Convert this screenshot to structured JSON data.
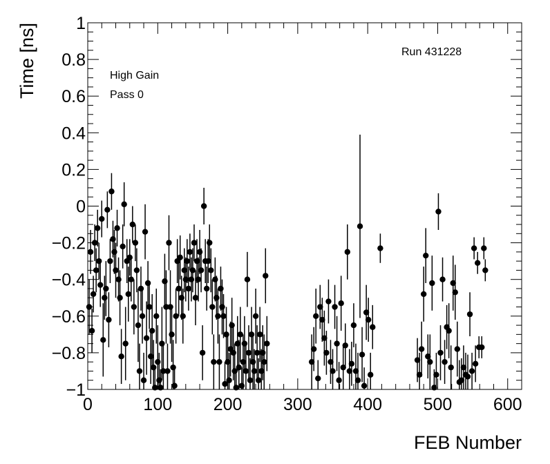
{
  "chart_data": {
    "type": "scatter",
    "xlabel": "FEB Number",
    "ylabel": "Time [ns]",
    "xlim": [
      0,
      620
    ],
    "ylim": [
      -1,
      1
    ],
    "x_ticks": [
      0,
      100,
      200,
      300,
      400,
      500,
      600
    ],
    "y_ticks": [
      -1,
      -0.8,
      -0.6,
      -0.4,
      -0.2,
      0,
      0.2,
      0.4,
      0.6,
      0.8,
      1
    ],
    "x_tick_labels": [
      "0",
      "100",
      "200",
      "300",
      "400",
      "500",
      "600"
    ],
    "y_tick_labels": [
      "−1",
      "−0.8",
      "−0.6",
      "−0.4",
      "−0.2",
      "0",
      "0.2",
      "0.4",
      "0.6",
      "0.8",
      "1"
    ],
    "annotations": [
      "High Gain",
      "Pass 0",
      "Run 431228"
    ],
    "grid": false,
    "marker_color": "#000000",
    "points": [
      [
        2,
        -0.55,
        0.15
      ],
      [
        4,
        -0.25,
        0.12
      ],
      [
        6,
        -0.68,
        0.12
      ],
      [
        8,
        -0.48,
        0.1
      ],
      [
        10,
        -0.2,
        0.1
      ],
      [
        12,
        -0.35,
        0.12
      ],
      [
        14,
        -0.12,
        0.1
      ],
      [
        16,
        -0.3,
        0.1
      ],
      [
        18,
        -0.43,
        0.12
      ],
      [
        20,
        -0.07,
        0.1
      ],
      [
        22,
        -0.73,
        0.2
      ],
      [
        24,
        -0.5,
        0.12
      ],
      [
        26,
        -0.45,
        0.15
      ],
      [
        28,
        -0.02,
        0.1
      ],
      [
        30,
        -0.62,
        0.15
      ],
      [
        32,
        -0.3,
        0.12
      ],
      [
        34,
        0.08,
        0.1
      ],
      [
        36,
        -0.18,
        0.1
      ],
      [
        38,
        -0.25,
        0.12
      ],
      [
        40,
        -0.35,
        0.15
      ],
      [
        42,
        -0.12,
        0.1
      ],
      [
        44,
        -0.4,
        0.12
      ],
      [
        46,
        -0.5,
        0.15
      ],
      [
        48,
        -0.82,
        0.15
      ],
      [
        50,
        -0.22,
        0.12
      ],
      [
        52,
        0.01,
        0.12
      ],
      [
        54,
        -0.75,
        0.2
      ],
      [
        56,
        -0.3,
        0.12
      ],
      [
        58,
        -0.48,
        0.15
      ],
      [
        60,
        -0.28,
        0.1
      ],
      [
        62,
        -0.4,
        0.12
      ],
      [
        64,
        -0.1,
        0.1
      ],
      [
        66,
        -0.55,
        0.15
      ],
      [
        68,
        -0.2,
        0.1
      ],
      [
        70,
        -0.35,
        0.12
      ],
      [
        72,
        -0.65,
        0.2
      ],
      [
        74,
        -0.9,
        0.15
      ],
      [
        76,
        -0.45,
        0.12
      ],
      [
        78,
        -0.6,
        0.15
      ],
      [
        80,
        -0.95,
        0.15
      ],
      [
        82,
        -0.14,
        0.15
      ],
      [
        84,
        -0.72,
        0.2
      ],
      [
        86,
        -0.42,
        0.12
      ],
      [
        88,
        -0.55,
        0.12
      ],
      [
        90,
        -0.82,
        0.15
      ],
      [
        92,
        -0.68,
        0.2
      ],
      [
        94,
        -0.88,
        0.15
      ],
      [
        96,
        -0.99,
        0.1
      ],
      [
        98,
        -0.6,
        0.15
      ],
      [
        100,
        -0.85,
        0.2
      ],
      [
        102,
        -0.95,
        0.15
      ],
      [
        104,
        -0.99,
        0.1
      ],
      [
        106,
        -0.75,
        0.2
      ],
      [
        108,
        -0.9,
        0.15
      ],
      [
        110,
        -0.41,
        0.15
      ],
      [
        112,
        -0.55,
        0.2
      ],
      [
        114,
        -0.9,
        0.15
      ],
      [
        116,
        -0.2,
        0.15
      ],
      [
        118,
        -0.55,
        0.2
      ],
      [
        120,
        -0.7,
        0.15
      ],
      [
        122,
        -0.88,
        0.15
      ],
      [
        124,
        -0.98,
        0.1
      ],
      [
        126,
        -0.6,
        0.15
      ],
      [
        128,
        -0.3,
        0.12
      ],
      [
        130,
        -0.45,
        0.15
      ],
      [
        132,
        -0.28,
        0.12
      ],
      [
        134,
        -0.5,
        0.12
      ],
      [
        136,
        -0.6,
        0.15
      ],
      [
        138,
        -0.35,
        0.12
      ],
      [
        140,
        -0.4,
        0.12
      ],
      [
        142,
        -0.3,
        0.12
      ],
      [
        144,
        -0.45,
        0.12
      ],
      [
        146,
        -0.25,
        0.1
      ],
      [
        148,
        -0.4,
        0.12
      ],
      [
        150,
        -0.35,
        0.12
      ],
      [
        152,
        -0.2,
        0.1
      ],
      [
        154,
        -0.5,
        0.15
      ],
      [
        156,
        -0.3,
        0.12
      ],
      [
        158,
        -0.4,
        0.12
      ],
      [
        160,
        -0.25,
        0.12
      ],
      [
        162,
        -0.35,
        0.12
      ],
      [
        164,
        -0.8,
        0.15
      ],
      [
        166,
        0.0,
        0.1
      ],
      [
        168,
        -0.3,
        0.12
      ],
      [
        170,
        -0.45,
        0.12
      ],
      [
        172,
        -0.3,
        0.12
      ],
      [
        174,
        -0.2,
        0.1
      ],
      [
        176,
        -0.35,
        0.12
      ],
      [
        178,
        -0.55,
        0.15
      ],
      [
        180,
        -0.85,
        0.15
      ],
      [
        182,
        -0.4,
        0.12
      ],
      [
        184,
        -0.5,
        0.12
      ],
      [
        186,
        -0.6,
        0.15
      ],
      [
        188,
        -0.85,
        0.15
      ],
      [
        190,
        -0.45,
        0.12
      ],
      [
        192,
        -0.55,
        0.15
      ],
      [
        194,
        -0.6,
        0.12
      ],
      [
        196,
        -0.97,
        0.12
      ],
      [
        198,
        -0.7,
        0.15
      ],
      [
        200,
        -0.85,
        0.15
      ],
      [
        202,
        -0.95,
        0.15
      ],
      [
        204,
        -0.78,
        0.15
      ],
      [
        206,
        -0.65,
        0.15
      ],
      [
        208,
        -0.8,
        0.15
      ],
      [
        210,
        -0.9,
        0.15
      ],
      [
        212,
        -0.99,
        0.1
      ],
      [
        214,
        -0.75,
        0.15
      ],
      [
        216,
        -0.88,
        0.15
      ],
      [
        218,
        -0.7,
        0.15
      ],
      [
        220,
        -0.98,
        0.1
      ],
      [
        222,
        -0.85,
        0.15
      ],
      [
        224,
        -0.75,
        0.15
      ],
      [
        226,
        -0.9,
        0.15
      ],
      [
        228,
        -0.4,
        0.15
      ],
      [
        230,
        -0.8,
        0.15
      ],
      [
        232,
        -0.95,
        0.12
      ],
      [
        234,
        -0.7,
        0.15
      ],
      [
        236,
        -0.85,
        0.15
      ],
      [
        238,
        -0.9,
        0.12
      ],
      [
        240,
        -0.6,
        0.15
      ],
      [
        242,
        -0.8,
        0.15
      ],
      [
        244,
        -0.95,
        0.12
      ],
      [
        246,
        -0.7,
        0.15
      ],
      [
        248,
        -0.9,
        0.12
      ],
      [
        250,
        -0.8,
        0.15
      ],
      [
        252,
        -0.85,
        0.15
      ],
      [
        254,
        -0.38,
        0.15
      ],
      [
        256,
        -0.75,
        0.15
      ],
      [
        320,
        -0.85,
        0.15
      ],
      [
        323,
        -0.78,
        0.12
      ],
      [
        326,
        -0.6,
        0.15
      ],
      [
        329,
        -0.94,
        0.1
      ],
      [
        332,
        -0.55,
        0.12
      ],
      [
        335,
        -0.62,
        0.12
      ],
      [
        338,
        -0.72,
        0.15
      ],
      [
        341,
        -0.8,
        0.12
      ],
      [
        344,
        -0.52,
        0.12
      ],
      [
        347,
        -0.85,
        0.12
      ],
      [
        350,
        -0.9,
        0.12
      ],
      [
        353,
        -0.55,
        0.12
      ],
      [
        356,
        -0.75,
        0.15
      ],
      [
        359,
        -0.95,
        0.1
      ],
      [
        362,
        -0.53,
        0.15
      ],
      [
        365,
        -0.88,
        0.12
      ],
      [
        368,
        -0.76,
        0.12
      ],
      [
        371,
        -0.25,
        0.15
      ],
      [
        374,
        -0.9,
        0.12
      ],
      [
        377,
        -0.86,
        0.12
      ],
      [
        380,
        -0.65,
        0.12
      ],
      [
        383,
        -0.9,
        0.15
      ],
      [
        386,
        -0.95,
        0.15
      ],
      [
        389,
        -0.11,
        0.5
      ],
      [
        392,
        -0.81,
        0.15
      ],
      [
        395,
        -0.98,
        0.1
      ],
      [
        398,
        -0.58,
        0.15
      ],
      [
        401,
        -0.62,
        0.12
      ],
      [
        404,
        -0.92,
        0.12
      ],
      [
        407,
        -0.66,
        0.12
      ],
      [
        418,
        -0.23,
        0.08
      ],
      [
        471,
        -0.84,
        0.12
      ],
      [
        474,
        -0.92,
        0.12
      ],
      [
        477,
        -0.78,
        0.15
      ],
      [
        480,
        -0.48,
        0.15
      ],
      [
        483,
        -0.27,
        0.15
      ],
      [
        486,
        -0.82,
        0.12
      ],
      [
        489,
        -0.85,
        0.15
      ],
      [
        492,
        -0.42,
        0.15
      ],
      [
        495,
        -0.99,
        0.1
      ],
      [
        498,
        -0.92,
        0.12
      ],
      [
        501,
        -0.03,
        0.1
      ],
      [
        504,
        -0.8,
        0.15
      ],
      [
        507,
        -0.4,
        0.12
      ],
      [
        510,
        -0.85,
        0.12
      ],
      [
        513,
        -0.66,
        0.12
      ],
      [
        516,
        -0.68,
        0.15
      ],
      [
        519,
        -0.88,
        0.12
      ],
      [
        522,
        -0.42,
        0.15
      ],
      [
        525,
        -0.47,
        0.15
      ],
      [
        528,
        -0.78,
        0.15
      ],
      [
        531,
        -0.96,
        0.12
      ],
      [
        534,
        -0.95,
        0.12
      ],
      [
        537,
        -0.88,
        0.12
      ],
      [
        540,
        -0.92,
        0.12
      ],
      [
        543,
        -0.93,
        0.12
      ],
      [
        546,
        -0.59,
        0.12
      ],
      [
        549,
        -0.9,
        0.1
      ],
      [
        552,
        -0.23,
        0.06
      ],
      [
        554,
        -0.86,
        0.1
      ],
      [
        557,
        -0.31,
        0.06
      ],
      [
        559,
        -0.77,
        0.06
      ],
      [
        563,
        -0.77,
        0.06
      ],
      [
        566,
        -0.23,
        0.06
      ],
      [
        568,
        -0.35,
        0.06
      ]
    ]
  }
}
